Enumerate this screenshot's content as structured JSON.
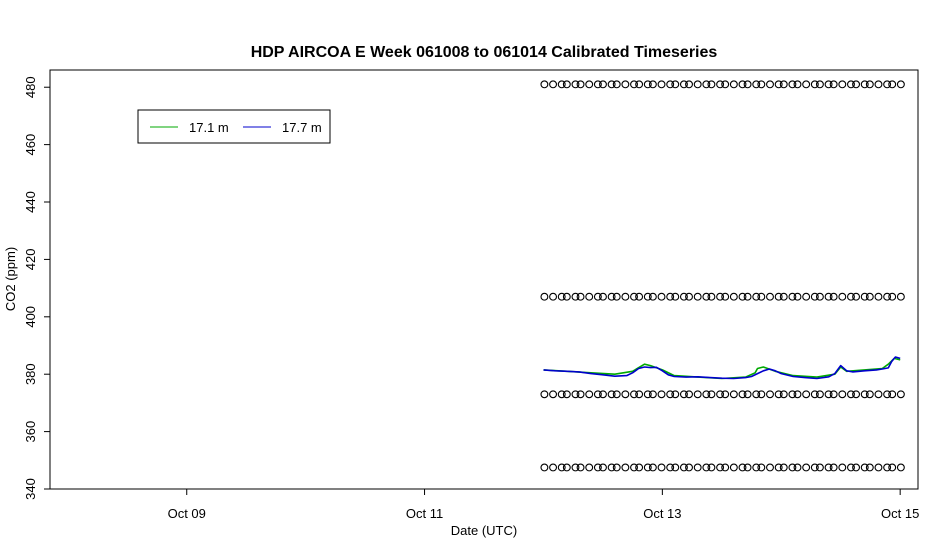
{
  "chart_data": {
    "type": "line",
    "title": "HDP AIRCOA E  Week 061008 to 061014  Calibrated Timeseries",
    "xlabel": "Date (UTC)",
    "ylabel": "CO2 (ppm)",
    "x_ticks": [
      "Oct 09",
      "Oct 11",
      "Oct 13",
      "Oct 15"
    ],
    "x_tick_values": [
      9,
      11,
      13,
      15
    ],
    "xlim": [
      7.85,
      15.15
    ],
    "ylim": [
      340,
      486
    ],
    "y_ticks": [
      340,
      360,
      380,
      400,
      420,
      440,
      460,
      480
    ],
    "grid": false,
    "legend": {
      "placement": "top-left",
      "entries": [
        {
          "name": "17.1 m",
          "color": "#00aa00"
        },
        {
          "name": "17.7 m",
          "color": "#0000cc"
        }
      ]
    },
    "series": [
      {
        "name": "17.1 m",
        "color": "#00aa00",
        "x": [
          12.0,
          12.2,
          12.4,
          12.6,
          12.75,
          12.85,
          12.9,
          13.0,
          13.1,
          13.3,
          13.5,
          13.7,
          13.78,
          13.8,
          13.85,
          13.95,
          14.1,
          14.3,
          14.45,
          14.5,
          14.55,
          14.7,
          14.85,
          14.9,
          14.95,
          15.0
        ],
        "y": [
          381.5,
          381,
          380.5,
          380,
          381,
          383.5,
          383,
          381.5,
          379.5,
          379,
          378.5,
          379,
          380.5,
          382,
          382.5,
          381,
          379.5,
          379,
          380,
          382.5,
          381,
          381.5,
          382,
          383.5,
          385.5,
          385
        ]
      },
      {
        "name": "17.7 m",
        "color": "#0000cc",
        "x": [
          12.0,
          12.1,
          12.2,
          12.3,
          12.4,
          12.5,
          12.6,
          12.7,
          12.75,
          12.8,
          12.85,
          12.9,
          12.95,
          13.0,
          13.05,
          13.1,
          13.2,
          13.3,
          13.4,
          13.5,
          13.6,
          13.7,
          13.75,
          13.8,
          13.85,
          13.9,
          13.95,
          14.0,
          14.1,
          14.2,
          14.3,
          14.4,
          14.45,
          14.5,
          14.55,
          14.6,
          14.7,
          14.8,
          14.85,
          14.9,
          14.93,
          14.96,
          15.0
        ],
        "y": [
          381.5,
          381.2,
          381,
          380.8,
          380.2,
          379.8,
          379.3,
          379.5,
          380.5,
          382,
          382.5,
          382.3,
          382.4,
          381.2,
          379.8,
          379.2,
          379,
          379.1,
          378.8,
          378.6,
          378.5,
          378.8,
          379.2,
          380.2,
          381.2,
          381.8,
          381.2,
          380.2,
          379.2,
          378.8,
          378.5,
          379.1,
          380.2,
          383,
          381.2,
          380.8,
          381.2,
          381.5,
          381.8,
          382.2,
          384.5,
          386,
          385.5
        ]
      },
      {
        "name": "",
        "type": "scatter",
        "marker": "open-circle",
        "levels": [
          481,
          407,
          373,
          347.5
        ],
        "x_start": 12.02,
        "x_end": 15.0,
        "count": 50
      }
    ]
  }
}
